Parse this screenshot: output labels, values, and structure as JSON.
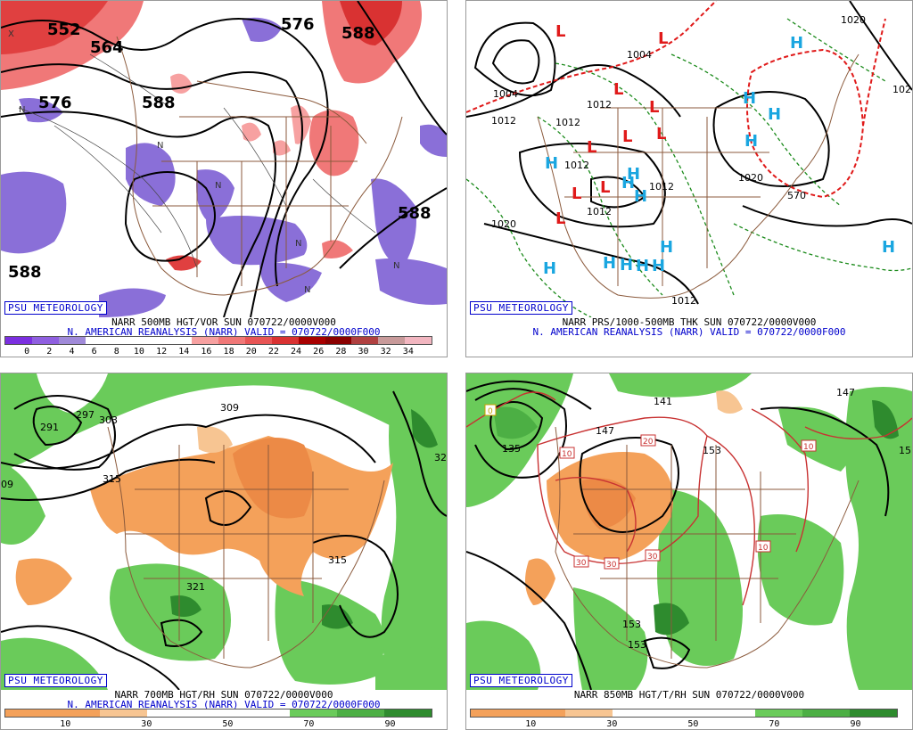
{
  "panels": [
    {
      "badge": "PSU METEOROLOGY",
      "title1": "NARR 500MB HGT/VOR SUN 070722/0000V000",
      "title2": "N. AMERICAN REANALYSIS (NARR) VALID = 070722/0000F000",
      "colorbar": {
        "colors": [
          "#7b2fe0",
          "#8f5fe0",
          "#a08ad9",
          "#fff",
          "#fff",
          "#fff",
          "#fff",
          "#f7a1a1",
          "#f07878",
          "#e85555",
          "#d93232",
          "#a80000",
          "#8a0000",
          "#b04040",
          "#c89a9a",
          "#f2b6c0"
        ],
        "ticks": [
          "0",
          "2",
          "4",
          "6",
          "8",
          "10",
          "12",
          "14",
          "16",
          "18",
          "20",
          "22",
          "24",
          "26",
          "28",
          "30",
          "32",
          "34"
        ]
      },
      "labels": [
        "552",
        "564",
        "576",
        "588",
        "576",
        "588",
        "588",
        "588"
      ],
      "n_marker": "N",
      "x_marker": "X"
    },
    {
      "badge": "PSU METEOROLOGY",
      "title1": "NARR PRS/1000-500MB THK SUN 070722/0000V000",
      "title2": "N. AMERICAN REANALYSIS (NARR) VALID = 070722/0000F000",
      "low": "L",
      "high": "H",
      "labels": [
        "1004",
        "1004",
        "1012",
        "1012",
        "1012",
        "1012",
        "1012",
        "1020",
        "1012",
        "1020",
        "1012",
        "1020",
        "102",
        "570"
      ]
    },
    {
      "badge": "PSU METEOROLOGY",
      "title1": "NARR 700MB HGT/RH SUN 070722/0000V000",
      "title2": "N. AMERICAN REANALYSIS (NARR) VALID = 070722/0000F000",
      "colorbar": {
        "colors": [
          "#f4a15a",
          "#f4a15a",
          "#f7c592",
          "#fff",
          "#fff",
          "#fff",
          "#6acb5a",
          "#4caf44",
          "#2e8b2e"
        ],
        "ticks": [
          "10",
          "30",
          "50",
          "70",
          "90"
        ]
      },
      "labels": [
        "291",
        "297",
        "303",
        "315",
        "309",
        "321",
        "315",
        "32",
        "09"
      ]
    },
    {
      "badge": "PSU METEOROLOGY",
      "title1": "NARR 850MB HGT/T/RH SUN 070722/0000V000",
      "title2": "",
      "colorbar": {
        "colors": [
          "#f4a15a",
          "#f4a15a",
          "#f7c592",
          "#fff",
          "#fff",
          "#fff",
          "#6acb5a",
          "#4caf44",
          "#2e8b2e"
        ],
        "ticks": [
          "10",
          "30",
          "50",
          "70",
          "90"
        ]
      },
      "labels": [
        "141",
        "147",
        "153",
        "153",
        "159",
        "147",
        "15",
        "135"
      ],
      "temp_labels": [
        "0",
        "10",
        "20",
        "30",
        "30",
        "30",
        "10",
        "10"
      ]
    }
  ]
}
